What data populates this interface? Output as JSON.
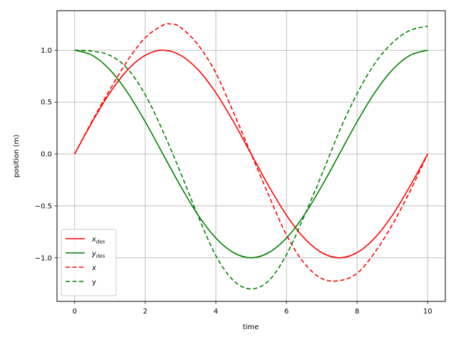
{
  "chart_data": {
    "type": "line",
    "title": "",
    "xlabel": "time",
    "ylabel": "position (m)",
    "xlim": [
      -0.5,
      10.5
    ],
    "ylim": [
      -1.42,
      1.38
    ],
    "xticks": [
      0,
      2,
      4,
      6,
      8,
      10
    ],
    "xtick_labels": [
      "0",
      "2",
      "4",
      "6",
      "8",
      "10"
    ],
    "yticks": [
      -1.0,
      -0.5,
      0.0,
      0.5,
      1.0
    ],
    "ytick_labels": [
      "−1.0",
      "−0.5",
      "0.0",
      "0.5",
      "1.0"
    ],
    "grid": true,
    "legend_position": "lower-left",
    "series": [
      {
        "name": "x_des",
        "legend_base": "x",
        "legend_sub": "des",
        "color": "#ff0000",
        "dash": "solid",
        "x": [
          0,
          0.5,
          1,
          1.5,
          2,
          2.5,
          3,
          3.5,
          4,
          4.5,
          5,
          5.5,
          6,
          6.5,
          7,
          7.5,
          8,
          8.5,
          9,
          9.5,
          10
        ],
        "y": [
          0.0,
          0.31,
          0.59,
          0.81,
          0.95,
          1.0,
          0.95,
          0.81,
          0.59,
          0.31,
          0.0,
          -0.31,
          -0.59,
          -0.81,
          -0.95,
          -1.0,
          -0.95,
          -0.81,
          -0.59,
          -0.31,
          0.0
        ]
      },
      {
        "name": "y_des",
        "legend_base": "y",
        "legend_sub": "des",
        "color": "#008000",
        "dash": "solid",
        "x": [
          0,
          0.5,
          1,
          1.5,
          2,
          2.5,
          3,
          3.5,
          4,
          4.5,
          5,
          5.5,
          6,
          6.5,
          7,
          7.5,
          8,
          8.5,
          9,
          9.5,
          10
        ],
        "y": [
          1.0,
          0.95,
          0.81,
          0.59,
          0.31,
          0.0,
          -0.31,
          -0.59,
          -0.81,
          -0.95,
          -1.0,
          -0.95,
          -0.81,
          -0.59,
          -0.31,
          0.0,
          0.31,
          0.59,
          0.81,
          0.95,
          1.0
        ]
      },
      {
        "name": "x",
        "legend_base": "x",
        "legend_sub": "",
        "color": "#ff0000",
        "dash": "dashed",
        "x": [
          0,
          0.5,
          1,
          1.5,
          2,
          2.5,
          2.75,
          3,
          3.5,
          4,
          4.5,
          5,
          5.5,
          6,
          6.5,
          7,
          7.5,
          8,
          8.5,
          9,
          9.5,
          10
        ],
        "y": [
          0.0,
          0.32,
          0.62,
          0.9,
          1.12,
          1.24,
          1.25,
          1.22,
          1.05,
          0.78,
          0.4,
          0.0,
          -0.4,
          -0.78,
          -1.05,
          -1.2,
          -1.22,
          -1.15,
          -0.95,
          -0.68,
          -0.36,
          0.0
        ]
      },
      {
        "name": "y",
        "legend_base": "y",
        "legend_sub": "",
        "color": "#008000",
        "dash": "dashed",
        "x": [
          0,
          0.5,
          1,
          1.5,
          2,
          2.5,
          3,
          3.5,
          4,
          4.5,
          5,
          5.5,
          6,
          6.5,
          7,
          7.5,
          8,
          8.5,
          9,
          9.5,
          10
        ],
        "y": [
          1.0,
          0.99,
          0.95,
          0.82,
          0.57,
          0.22,
          -0.18,
          -0.6,
          -0.98,
          -1.22,
          -1.3,
          -1.22,
          -0.97,
          -0.6,
          -0.2,
          0.22,
          0.58,
          0.87,
          1.07,
          1.19,
          1.23
        ]
      }
    ]
  }
}
